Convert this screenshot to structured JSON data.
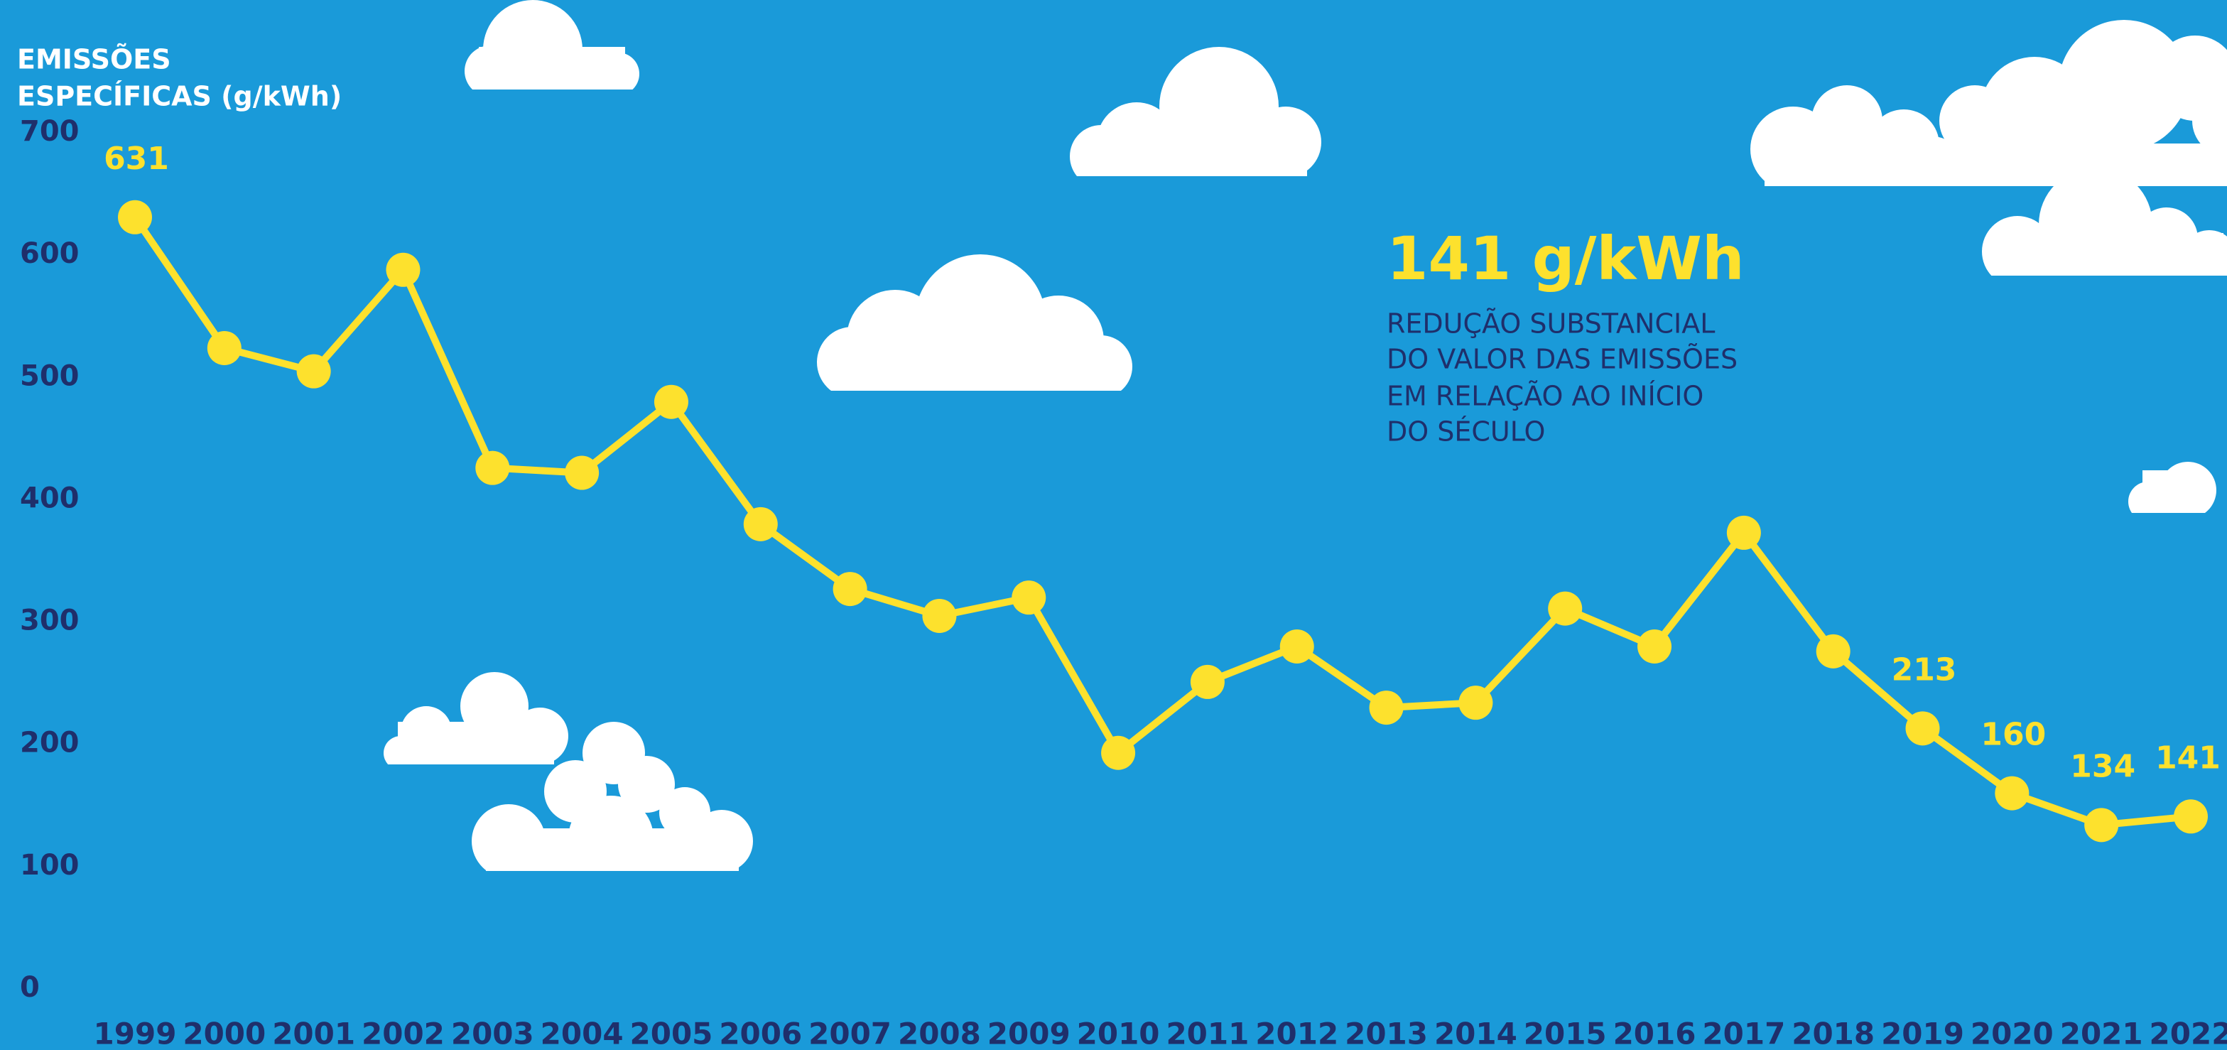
{
  "chart_data": {
    "type": "line",
    "y_axis_title": [
      "EMISSÕES",
      "ESPECÍFICAS (g/kWh)"
    ],
    "categories": [
      "1999",
      "2000",
      "2001",
      "2002",
      "2003",
      "2004",
      "2005",
      "2006",
      "2007",
      "2008",
      "2009",
      "2010",
      "2011",
      "2012",
      "2013",
      "2014",
      "2015",
      "2016",
      "2017",
      "2018",
      "2019",
      "2020",
      "2021",
      "2022"
    ],
    "series": [
      {
        "name": "Emissões específicas",
        "color": "#fde12d",
        "values": [
          631,
          524,
          505,
          588,
          426,
          422,
          480,
          380,
          327,
          305,
          320,
          193,
          251,
          280,
          230,
          234,
          311,
          280,
          373,
          276,
          213,
          160,
          134,
          141
        ]
      }
    ],
    "labeled_points": [
      0,
      20,
      21,
      22,
      23
    ],
    "ylim": [
      0,
      700
    ],
    "yticks": [
      0,
      100,
      200,
      300,
      400,
      500,
      600,
      700
    ],
    "annotation": {
      "headline": "141 g/kWh",
      "lines": [
        "REDUÇÃO SUBSTANCIAL",
        "DO VALOR DAS EMISSÕES",
        "EM RELAÇÃO AO INÍCIO",
        "DO SÉCULO"
      ]
    }
  }
}
